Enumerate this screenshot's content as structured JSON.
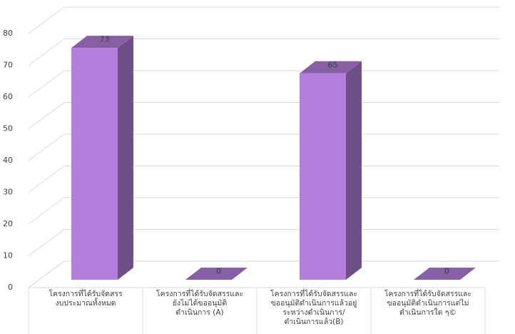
{
  "chart_data": {
    "type": "bar",
    "categories": [
      "โครงการที่ได้รับจัดสรร\nงบประมาณทั้งหมด",
      "โครงการที่ได้รับจัดสรรและ\nยังไม่ได้ขออนุมัติ\nดำเนินการ (A)",
      "โครงการที่ได้รับจัดสรรและ\nขออนุมัติดำเนินการแล้วอยู่\nระหว่างดำเนินการ/\nดำเนินการแล้ว(B)",
      "โครงการที่ได้รับจัดสรรและ\nขออนุมัติดำเนินการแต่ไม่\nดำเนินการใด ๆ©"
    ],
    "values": [
      73,
      0,
      65,
      0
    ],
    "color": "#b37fdc",
    "ylim": [
      0,
      80
    ],
    "yticks": [
      0,
      10,
      20,
      30,
      40,
      50,
      60,
      70,
      80
    ],
    "grid": true
  }
}
